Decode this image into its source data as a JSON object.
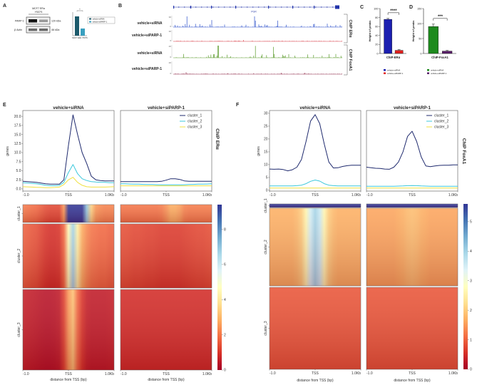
{
  "panel_labels": {
    "a": "A",
    "b": "B",
    "c": "C",
    "d": "D",
    "e": "E",
    "f": "F"
  },
  "panel_a": {
    "cell_line": "MCF7 ERα",
    "mutation": "Y537S",
    "rows": [
      {
        "protein": "PARP-1",
        "size": "120 kDa"
      },
      {
        "protein": "β Actin",
        "size": "46 kDa"
      }
    ],
    "legend": [
      "vehicle+siRNA",
      "vehicle+siPARP-1"
    ],
    "bar_values": [
      1.0,
      0.35
    ],
    "bar_colors": [
      "#1d5a6b",
      "#3aa0c0"
    ],
    "xlabel": "MCF7 ERα Y537S",
    "significance": "*"
  },
  "panel_b": {
    "gene": "PGR",
    "tracks": [
      {
        "label": "vehicle+siRNA",
        "ymax": "30",
        "ymin": "0",
        "color": "#2a4fc9",
        "level": 0.55
      },
      {
        "label": "vehicle+siPARP-1",
        "ymax": "30",
        "ymin": "0",
        "color": "#d6303a",
        "level": 0.05
      },
      {
        "label": "vehicle+siRNA",
        "ymax": "20",
        "ymin": "0",
        "color": "#5a9a2a",
        "level": 0.55
      },
      {
        "label": "vehicle+siPARP-1",
        "ymax": "20",
        "ymin": "0",
        "color": "#8a2040",
        "level": 0.08
      }
    ],
    "groups": [
      "ChIP ERα",
      "ChIP FoxA1"
    ]
  },
  "chart_data": [
    {
      "id": "C",
      "type": "bar",
      "ylabel": "Height of peaks",
      "xlabel": "ChIP-ERα",
      "categories": [
        "vehicle+siRNA",
        "vehicle+siPARP-1"
      ],
      "values": [
        76,
        7
      ],
      "errors": [
        2,
        1.5
      ],
      "colors": [
        "#1b1fb0",
        "#e0201e"
      ],
      "ylim": [
        0,
        100
      ],
      "yticks": [
        0,
        20,
        40,
        60,
        80,
        100
      ],
      "significance": "****",
      "legend": [
        "vehicle+siRNA",
        "vehicle+siPARP-1"
      ]
    },
    {
      "id": "D",
      "type": "bar",
      "ylabel": "Height of peaks",
      "xlabel": "ChIP-FoxA1",
      "categories": [
        "vehicle+siRNA",
        "vehicle+siPARP-1"
      ],
      "values": [
        90,
        8
      ],
      "errors": [
        8,
        2
      ],
      "colors": [
        "#1e8a1e",
        "#5a1f6a"
      ],
      "ylim": [
        0,
        150
      ],
      "yticks": [
        0,
        50,
        100,
        150
      ],
      "significance": "***",
      "legend": [
        "vehicle+siRNA",
        "vehicle+siPARP-1"
      ]
    },
    {
      "id": "E",
      "type": "line",
      "side_label": "ChIP ERα",
      "ylabel": "genes",
      "xlabel": "distance from TSS (bp)",
      "xtick_labels": [
        "-1.0",
        "TSS",
        "1.0Kb"
      ],
      "x": [
        -1000,
        -900,
        -800,
        -700,
        -600,
        -500,
        -400,
        -300,
        -200,
        -100,
        0,
        100,
        200,
        300,
        400,
        500,
        600,
        700,
        800,
        900,
        1000
      ],
      "ylim": [
        -0.6,
        21.6
      ],
      "yticks": [
        "0.0",
        "2.5",
        "5.0",
        "7.5",
        "10.0",
        "12.5",
        "15.0",
        "17.5",
        "20.0"
      ],
      "colorbar": {
        "vmax": 9.4,
        "ticks": [
          "0",
          "2",
          "4",
          "6",
          "8"
        ]
      },
      "cluster_labels": [
        "cluster_1",
        "cluster_2",
        "cluster_3"
      ],
      "panels": [
        {
          "title": "vehicle+siRNA",
          "series": [
            {
              "name": "cluster_1",
              "color": "#1f2a6e",
              "values": [
                2.1,
                2.0,
                1.9,
                1.8,
                1.6,
                1.4,
                1.3,
                1.3,
                1.3,
                2.5,
                12,
                20.4,
                15,
                10,
                7,
                3.5,
                2.5,
                2.3,
                2.2,
                2.2,
                2.2
              ]
            },
            {
              "name": "cluster_2",
              "color": "#3cc8dc",
              "values": [
                1.7,
                1.6,
                1.5,
                1.4,
                1.2,
                1.0,
                0.9,
                0.9,
                1.0,
                1.8,
                4.5,
                6.7,
                4.2,
                2.8,
                2.3,
                2.0,
                1.9,
                1.8,
                1.8,
                1.7,
                1.7
              ]
            },
            {
              "name": "cluster_3",
              "color": "#f0e040",
              "values": [
                0.6,
                0.55,
                0.5,
                0.45,
                0.4,
                0.35,
                0.35,
                0.4,
                0.5,
                1.2,
                2.5,
                3.2,
                1.8,
                1.0,
                0.6,
                0.5,
                0.5,
                0.5,
                0.5,
                0.55,
                0.6
              ]
            }
          ]
        },
        {
          "title": "vehicle+siPARP-1",
          "series": [
            {
              "name": "cluster_1",
              "color": "#1f2a6e",
              "values": [
                2.0,
                2.0,
                2.0,
                2.0,
                2.0,
                2.0,
                2.0,
                2.0,
                2.0,
                2.1,
                2.4,
                2.8,
                2.8,
                2.6,
                2.2,
                2.1,
                2.1,
                2.1,
                2.1,
                2.1,
                2.1
              ]
            },
            {
              "name": "cluster_2",
              "color": "#3cc8dc",
              "values": [
                1.4,
                1.4,
                1.35,
                1.3,
                1.3,
                1.25,
                1.2,
                1.2,
                1.15,
                1.1,
                1.1,
                1.1,
                1.1,
                1.1,
                1.15,
                1.2,
                1.25,
                1.3,
                1.3,
                1.35,
                1.4
              ]
            },
            {
              "name": "cluster_3",
              "color": "#f0e040",
              "values": [
                0.85,
                0.85,
                0.85,
                0.85,
                0.85,
                0.85,
                0.85,
                0.85,
                0.85,
                0.85,
                0.85,
                0.85,
                0.85,
                0.85,
                0.85,
                0.85,
                0.85,
                0.85,
                0.85,
                0.85,
                0.85
              ]
            }
          ]
        }
      ]
    },
    {
      "id": "F",
      "type": "line",
      "side_label": "ChIP FoxA1",
      "ylabel": "genes",
      "xlabel": "distance from TSS (bp)",
      "xtick_labels": [
        "-1.0",
        "TSS",
        "1.0Kb"
      ],
      "x": [
        -1000,
        -900,
        -800,
        -700,
        -600,
        -500,
        -400,
        -300,
        -200,
        -100,
        0,
        100,
        200,
        300,
        400,
        500,
        600,
        700,
        800,
        900,
        1000
      ],
      "ylim": [
        -0.3,
        31.1
      ],
      "yticks": [
        "0",
        "5",
        "10",
        "15",
        "20",
        "25",
        "30"
      ],
      "colorbar": {
        "vmax": 5.6,
        "ticks": [
          "0",
          "1",
          "2",
          "3",
          "4",
          "5"
        ]
      },
      "cluster_labels": [
        "cluster_1",
        "cluster_2",
        "cluster_3"
      ],
      "panels": [
        {
          "title": "vehicle+siRNA",
          "series": [
            {
              "name": "cluster_1",
              "color": "#1f2a6e",
              "values": [
                8.3,
                8.2,
                8.3,
                8.1,
                7.6,
                8.0,
                9,
                12,
                19,
                27,
                29.5,
                26,
                18,
                11,
                8.7,
                8.8,
                9.3,
                9.6,
                9.8,
                9.8,
                9.8
              ]
            },
            {
              "name": "cluster_2",
              "color": "#3cc8dc",
              "values": [
                1.7,
                1.7,
                1.7,
                1.7,
                1.7,
                1.7,
                1.8,
                2.0,
                2.6,
                3.5,
                4.0,
                3.6,
                2.6,
                2.0,
                1.8,
                1.7,
                1.7,
                1.7,
                1.7,
                1.7,
                1.7
              ]
            },
            {
              "name": "cluster_3",
              "color": "#f0e040",
              "values": [
                0.9,
                0.9,
                0.9,
                0.9,
                0.9,
                0.9,
                0.9,
                0.9,
                0.9,
                0.9,
                0.9,
                0.9,
                0.9,
                0.9,
                0.9,
                0.9,
                0.9,
                0.9,
                0.9,
                0.9,
                0.9
              ]
            }
          ]
        },
        {
          "title": "vehicle+siPARP-1",
          "series": [
            {
              "name": "cluster_1",
              "color": "#1f2a6e",
              "values": [
                9,
                8.8,
                8.6,
                8.5,
                8.3,
                8.2,
                9,
                11,
                15,
                21,
                23,
                19,
                13,
                9.5,
                9.2,
                9.5,
                9.7,
                9.8,
                9.8,
                9.9,
                9.9
              ]
            },
            {
              "name": "cluster_2",
              "color": "#3cc8dc",
              "values": [
                1.6,
                1.6,
                1.6,
                1.6,
                1.6,
                1.6,
                1.6,
                1.65,
                1.7,
                1.8,
                1.85,
                1.8,
                1.7,
                1.65,
                1.6,
                1.6,
                1.6,
                1.6,
                1.6,
                1.6,
                1.6
              ]
            },
            {
              "name": "cluster_3",
              "color": "#f0e040",
              "values": [
                0.9,
                0.9,
                0.9,
                0.9,
                0.9,
                0.9,
                0.9,
                0.9,
                0.9,
                0.9,
                0.9,
                0.9,
                0.9,
                0.9,
                0.9,
                0.9,
                0.9,
                0.9,
                0.9,
                0.9,
                0.9
              ]
            }
          ]
        }
      ]
    }
  ]
}
